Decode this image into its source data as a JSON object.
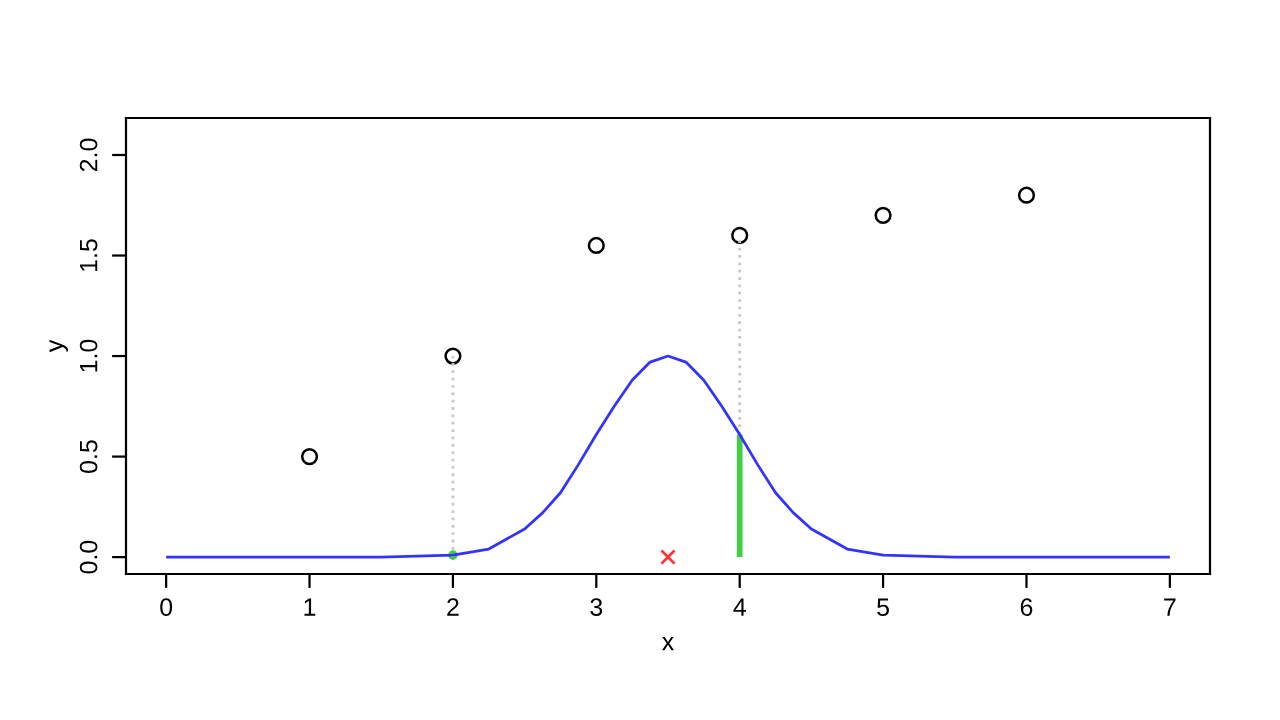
{
  "chart_data": {
    "type": "scatter",
    "xlabel": "x",
    "ylabel": "y",
    "xlim": [
      -0.28,
      7.28
    ],
    "ylim": [
      -0.084,
      2.184
    ],
    "xticks": [
      0,
      1,
      2,
      3,
      4,
      5,
      6,
      7
    ],
    "yticks": [
      {
        "value": 0,
        "label": "0.0"
      },
      {
        "value": 0.5,
        "label": "0.5"
      },
      {
        "value": 1,
        "label": "1.0"
      },
      {
        "value": 1.5,
        "label": "1.5"
      },
      {
        "value": 2,
        "label": "2.0"
      }
    ],
    "legend": false,
    "series": [
      {
        "type": "line",
        "color": "#c8c8c8",
        "line_style": "dotted",
        "marker": "none",
        "x": [
          2,
          2
        ],
        "values": [
          0,
          1.0
        ]
      },
      {
        "type": "line",
        "color": "#c8c8c8",
        "line_style": "dotted",
        "marker": "none",
        "x": [
          4,
          4
        ],
        "values": [
          0.61,
          1.6
        ]
      },
      {
        "color": "#000000",
        "marker": "circle",
        "x": [
          1,
          2,
          3,
          4,
          5,
          6
        ],
        "values": [
          0.5,
          1.0,
          1.55,
          1.6,
          1.7,
          1.8
        ]
      },
      {
        "type": "line",
        "color": "#3333ff",
        "line_style": "solid",
        "marker": "none",
        "x": [
          0,
          1,
          1.5,
          2,
          2.25,
          2.5,
          2.625,
          2.75,
          2.875,
          3,
          3.125,
          3.25,
          3.375,
          3.5,
          3.625,
          3.75,
          3.875,
          4,
          4.125,
          4.25,
          4.375,
          4.5,
          4.75,
          5,
          5.5,
          6,
          7
        ],
        "values": [
          0,
          0,
          0,
          0.01,
          0.04,
          0.14,
          0.22,
          0.32,
          0.46,
          0.61,
          0.75,
          0.88,
          0.97,
          1.0,
          0.97,
          0.88,
          0.75,
          0.61,
          0.46,
          0.32,
          0.22,
          0.14,
          0.04,
          0.01,
          0,
          0,
          0
        ]
      },
      {
        "type": "bar",
        "color": "#44cc44",
        "x": [
          4
        ],
        "values": [
          0.61
        ]
      },
      {
        "color": "#44cc44",
        "marker": "circle_filled",
        "x": [
          2
        ],
        "values": [
          0.01
        ]
      },
      {
        "color": "#ff3333",
        "marker": "cross",
        "x": [
          3.5
        ],
        "values": [
          0
        ]
      }
    ]
  }
}
